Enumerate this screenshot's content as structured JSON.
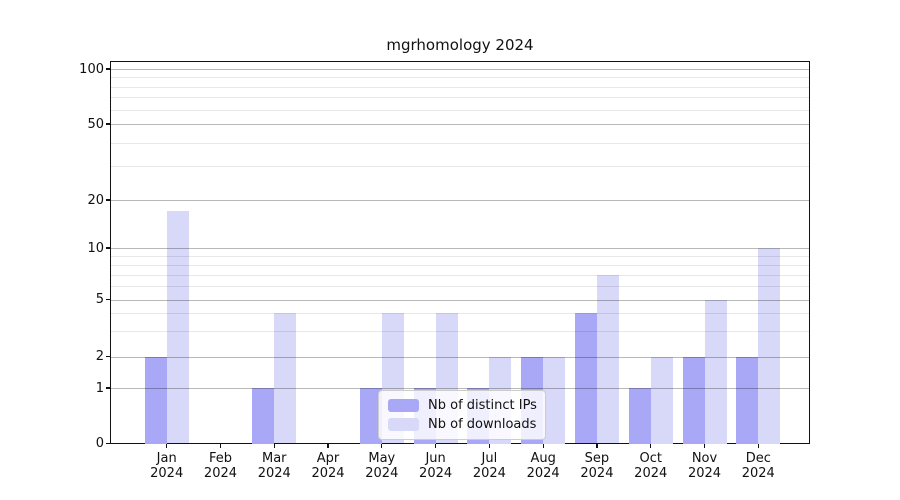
{
  "chart_data": {
    "type": "bar",
    "title": "mgrhomology 2024",
    "categories": [
      "Jan",
      "Feb",
      "Mar",
      "Apr",
      "May",
      "Jun",
      "Jul",
      "Aug",
      "Sep",
      "Oct",
      "Nov",
      "Dec"
    ],
    "category_year": "2024",
    "series": [
      {
        "name": "Nb of distinct IPs",
        "color": "#a8a8f7",
        "values": [
          2,
          0,
          1,
          0,
          1,
          1,
          1,
          2,
          4,
          1,
          2,
          2
        ]
      },
      {
        "name": "Nb of downloads",
        "color": "#d8d8f8",
        "values": [
          17,
          0,
          4,
          0,
          4,
          4,
          2,
          2,
          7,
          2,
          5,
          10
        ]
      }
    ],
    "yscale": "symlog",
    "ylim": [
      0,
      120
    ],
    "ytick_values": [
      0,
      1,
      2,
      5,
      10,
      20,
      50,
      100
    ],
    "ytick_labels": [
      "0",
      "1",
      "2",
      "5",
      "10",
      "20",
      "50",
      "100"
    ],
    "minor_ytick_values": [
      3,
      4,
      6,
      7,
      8,
      9,
      30,
      40,
      60,
      70,
      80,
      90
    ],
    "grid": true,
    "legend_position": "lower center",
    "xlabel": "",
    "ylabel": ""
  },
  "colors": {
    "distinct_ips": "#a8a8f7",
    "downloads": "#d8d8f8",
    "grid_major": "rgba(0,0,0,0.28)",
    "grid_minor": "rgba(0,0,0,0.09)",
    "axis": "#111111",
    "background": "#ffffff"
  }
}
